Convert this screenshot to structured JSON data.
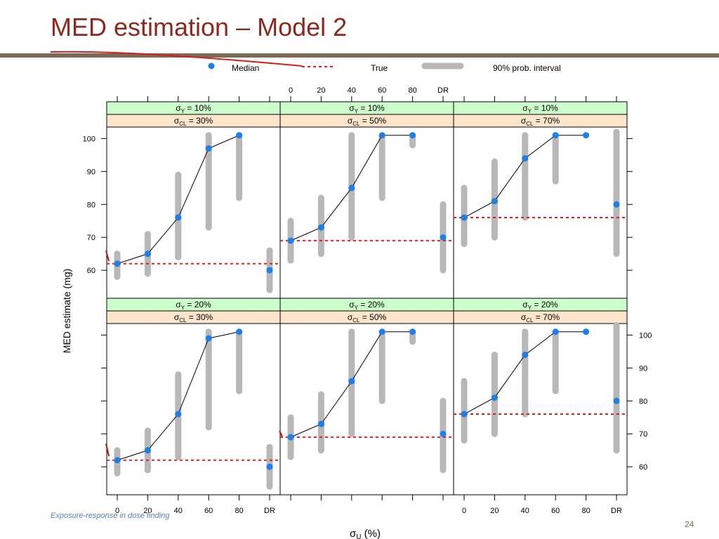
{
  "slide": {
    "title": "MED estimation – Model 2",
    "footer": "Exposure-response in dose finding",
    "page_number": "24"
  },
  "legend": {
    "median_label": "Median",
    "true_label": "True",
    "interval_label": "90% prob. interval"
  },
  "colors": {
    "median": "#1e7fe6",
    "true": "#e02020",
    "interval": "#b8b8b8",
    "strip_top": "#ccffcc",
    "strip_bottom": "#ffe5cc",
    "title": "#8b2a1e"
  },
  "chart_data": {
    "type": "scatter",
    "xlabel_symbol": "σ",
    "xlabel_sub": "U",
    "xlabel_suffix": "(%)",
    "ylabel": "MED estimate (mg)",
    "categories": [
      "0",
      "20",
      "40",
      "60",
      "80",
      "DR"
    ],
    "yticks": [
      60,
      70,
      80,
      90,
      100
    ],
    "ylim": [
      51.5,
      103.5
    ],
    "strip_symbol": "σ",
    "panels": [
      {
        "sigmaY": "10%",
        "sigmaCL": "30%",
        "row": "top",
        "col": 0,
        "true": 62,
        "median": [
          62,
          65,
          76,
          97,
          101,
          60
        ],
        "lower": [
          58,
          59,
          64,
          73,
          82,
          54
        ],
        "upper": [
          65,
          71,
          89,
          101,
          101,
          66
        ]
      },
      {
        "sigmaY": "10%",
        "sigmaCL": "50%",
        "row": "top",
        "col": 1,
        "true": 69,
        "median": [
          69,
          73,
          85,
          101,
          101,
          70
        ],
        "lower": [
          63,
          65,
          70,
          82,
          98,
          60
        ],
        "upper": [
          75,
          82,
          101,
          101,
          101,
          80
        ]
      },
      {
        "sigmaY": "10%",
        "sigmaCL": "70%",
        "row": "top",
        "col": 2,
        "true": 76,
        "median": [
          76,
          81,
          94,
          101,
          101,
          80
        ],
        "lower": [
          68,
          70,
          76,
          87,
          101,
          65
        ],
        "upper": [
          85,
          93,
          101,
          101,
          101,
          102
        ]
      },
      {
        "sigmaY": "20%",
        "sigmaCL": "30%",
        "row": "bottom",
        "col": 0,
        "true": 62,
        "median": [
          62,
          65,
          76,
          99,
          101,
          60
        ],
        "lower": [
          58,
          59,
          63,
          72,
          83,
          54
        ],
        "upper": [
          65,
          71,
          88,
          101,
          101,
          66
        ]
      },
      {
        "sigmaY": "20%",
        "sigmaCL": "50%",
        "row": "bottom",
        "col": 1,
        "true": 69,
        "median": [
          69,
          73,
          86,
          101,
          101,
          70
        ],
        "lower": [
          63,
          65,
          70,
          80,
          98,
          59
        ],
        "upper": [
          75,
          82,
          101,
          101,
          101,
          80
        ]
      },
      {
        "sigmaY": "20%",
        "sigmaCL": "70%",
        "row": "bottom",
        "col": 2,
        "true": 76,
        "median": [
          76,
          81,
          94,
          101,
          101,
          80
        ],
        "lower": [
          68,
          70,
          76,
          83,
          101,
          65
        ],
        "upper": [
          86,
          94,
          101,
          101,
          101,
          103
        ]
      }
    ]
  }
}
